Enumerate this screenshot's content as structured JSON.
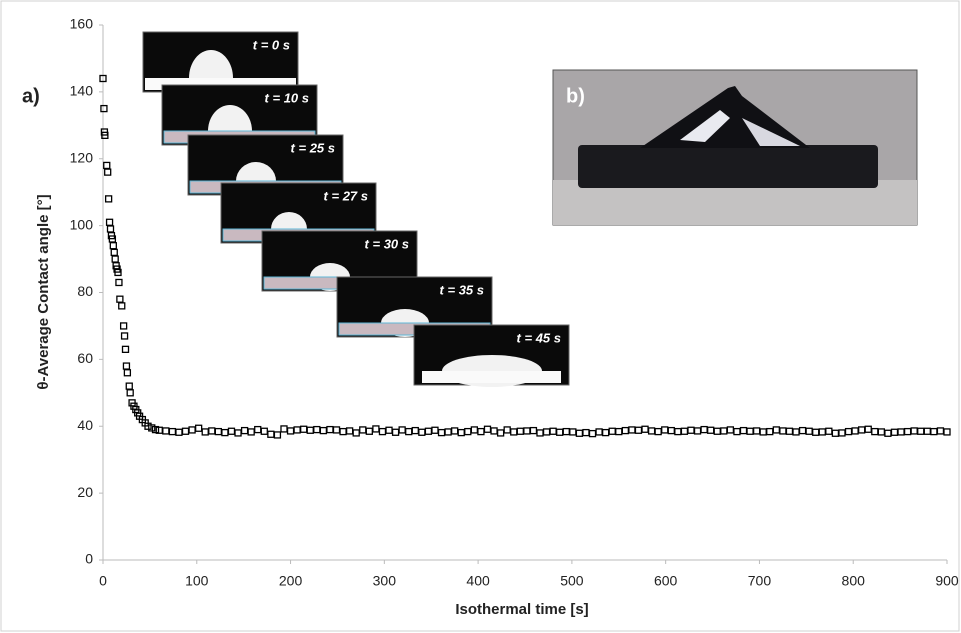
{
  "chart_data": {
    "type": "scatter",
    "xlabel": "Isothermal time [s]",
    "ylabel": "θ-Average Contact angle [°]",
    "panel_labels": [
      "a)",
      "b)"
    ],
    "insets": [
      "t = 0 s",
      "t = 10 s",
      "t = 25 s",
      "t = 27 s",
      "t = 30 s",
      "t = 35 s",
      "t = 45 s"
    ],
    "color": "#000000",
    "xlim": [
      0,
      900
    ],
    "xticks": [
      0,
      100,
      200,
      300,
      400,
      500,
      600,
      700,
      800,
      900
    ],
    "ylim": [
      0,
      160
    ],
    "yticks": [
      0,
      20,
      40,
      60,
      80,
      100,
      120,
      140,
      160
    ],
    "grid": false,
    "x": [
      0,
      1,
      1.5,
      2,
      4,
      5,
      6,
      7,
      8,
      9,
      10,
      11,
      12,
      13,
      14,
      15,
      16,
      17,
      18,
      20,
      22,
      23,
      24,
      25,
      26,
      28,
      29,
      31,
      33,
      35,
      37,
      39,
      42,
      45,
      48,
      52,
      56,
      60,
      67,
      74,
      81,
      88,
      95,
      102,
      109,
      116,
      123,
      130,
      137,
      144,
      151,
      158,
      165,
      172,
      179,
      186,
      193,
      200,
      207,
      214,
      221,
      228,
      235,
      242,
      249,
      256,
      263,
      270,
      277,
      284,
      291,
      298,
      305,
      312,
      319,
      326,
      333,
      340,
      347,
      354,
      361,
      368,
      375,
      382,
      389,
      396,
      403,
      410,
      417,
      424,
      431,
      438,
      445,
      452,
      459,
      466,
      473,
      480,
      487,
      494,
      501,
      508,
      515,
      522,
      529,
      536,
      543,
      550,
      557,
      564,
      571,
      578,
      585,
      592,
      599,
      606,
      613,
      620,
      627,
      634,
      641,
      648,
      655,
      662,
      669,
      676,
      683,
      690,
      697,
      704,
      711,
      718,
      725,
      732,
      739,
      746,
      753,
      760,
      767,
      774,
      781,
      788,
      795,
      802,
      809,
      816,
      823,
      830,
      837,
      844,
      851,
      858,
      865,
      872,
      879,
      886,
      893,
      900
    ],
    "values": [
      144,
      135,
      128,
      127,
      118,
      116,
      108,
      101,
      99,
      97,
      96,
      94,
      92,
      90,
      88,
      87,
      86,
      83,
      78,
      76,
      70,
      67,
      63,
      58,
      56,
      52,
      50,
      47,
      46,
      45,
      44,
      43,
      42,
      41,
      40,
      39.5,
      39,
      38.8,
      38.6,
      38.4,
      38.2,
      38.5,
      38.9,
      39.4,
      38.3,
      38.6,
      38.4,
      38.1,
      38.5,
      38.0,
      38.7,
      38.3,
      39.0,
      38.5,
      37.6,
      37.4,
      39.2,
      38.6,
      38.9,
      39.1,
      38.8,
      39.0,
      38.7,
      39.0,
      38.9,
      38.4,
      38.6,
      38.0,
      38.9,
      38.5,
      39.2,
      38.4,
      38.8,
      38.2,
      38.9,
      38.4,
      38.7,
      38.2,
      38.5,
      38.8,
      38.1,
      38.3,
      38.6,
      38.1,
      38.4,
      38.9,
      38.4,
      39.1,
      38.6,
      38.0,
      38.9,
      38.3,
      38.5,
      38.6,
      38.7,
      38.0,
      38.3,
      38.5,
      38.2,
      38.4,
      38.3,
      37.9,
      38.1,
      37.8,
      38.3,
      38.1,
      38.5,
      38.4,
      38.7,
      38.9,
      38.8,
      39.1,
      38.6,
      38.4,
      38.9,
      38.7,
      38.4,
      38.5,
      38.8,
      38.6,
      39.0,
      38.8,
      38.5,
      38.6,
      38.9,
      38.4,
      38.7,
      38.5,
      38.6,
      38.3,
      38.4,
      38.9,
      38.6,
      38.5,
      38.3,
      38.7,
      38.5,
      38.2,
      38.3,
      38.5,
      37.9,
      38.0,
      38.4,
      38.6,
      38.9,
      39.1,
      38.4,
      38.3,
      37.9,
      38.2,
      38.3,
      38.4,
      38.6,
      38.5,
      38.5,
      38.4,
      38.6,
      38.3
    ]
  }
}
